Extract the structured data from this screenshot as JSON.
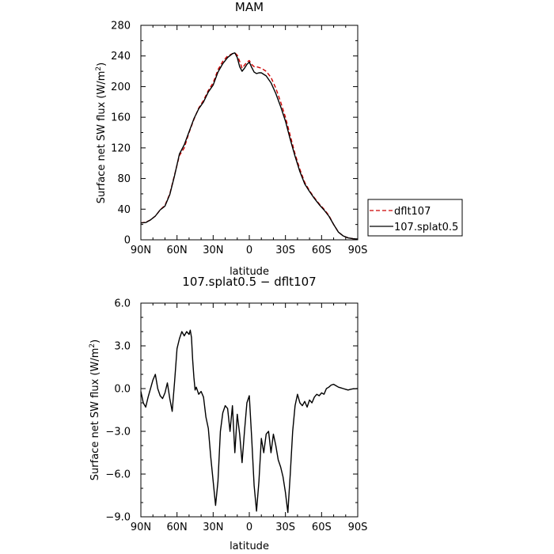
{
  "chart_data": [
    {
      "type": "line",
      "title": "MAM",
      "xlabel": "latitude",
      "ylabel": "Surface net SW flux (W/m²)",
      "x_tick_labels": [
        "90N",
        "60N",
        "30N",
        "0",
        "30S",
        "60S",
        "90S"
      ],
      "x_ticks": [
        90,
        60,
        30,
        0,
        -30,
        -60,
        -90
      ],
      "xlim": [
        90,
        -90
      ],
      "ylim": [
        0,
        280
      ],
      "y_ticks": [
        0,
        40,
        80,
        120,
        160,
        200,
        240,
        280
      ],
      "y_tick_labels": [
        "0",
        "40",
        "80",
        "120",
        "160",
        "200",
        "240",
        "280"
      ],
      "grid": false,
      "legend_position": "right",
      "series": [
        {
          "name": "dflt107",
          "color": "#cc0000",
          "dash": true,
          "x": [
            90,
            86,
            82,
            78,
            74,
            70,
            66,
            62,
            58,
            54,
            50,
            46,
            42,
            38,
            34,
            30,
            26,
            22,
            18,
            14,
            12,
            10,
            8,
            6,
            4,
            2,
            0,
            -2,
            -4,
            -6,
            -8,
            -10,
            -14,
            -18,
            -22,
            -26,
            -30,
            -34,
            -38,
            -42,
            -46,
            -50,
            -54,
            -58,
            -62,
            -66,
            -70,
            -74,
            -78,
            -82,
            -86,
            -90
          ],
          "y": [
            22,
            23,
            26,
            31,
            39,
            45,
            60,
            85,
            110,
            120,
            140,
            157,
            172,
            182,
            195,
            205,
            222,
            233,
            240,
            243,
            244,
            241,
            233,
            224,
            228,
            232,
            234,
            229,
            226,
            226,
            225,
            224,
            220,
            212,
            198,
            180,
            160,
            136,
            112,
            92,
            75,
            64,
            55,
            47,
            40,
            32,
            20,
            10,
            5,
            2.5,
            1.5,
            1
          ]
        },
        {
          "name": "107.splat0.5",
          "color": "#000000",
          "dash": false,
          "x": [
            90,
            86,
            82,
            78,
            74,
            70,
            66,
            62,
            58,
            54,
            50,
            46,
            42,
            38,
            34,
            30,
            26,
            22,
            18,
            14,
            12,
            10,
            8,
            6,
            4,
            2,
            0,
            -2,
            -4,
            -6,
            -8,
            -10,
            -14,
            -18,
            -22,
            -26,
            -30,
            -34,
            -38,
            -42,
            -46,
            -50,
            -54,
            -58,
            -62,
            -66,
            -70,
            -74,
            -78,
            -82,
            -86,
            -90
          ],
          "y": [
            22,
            22.5,
            26,
            31,
            39,
            44,
            59,
            84,
            112,
            124,
            141,
            158,
            171,
            180,
            193,
            202,
            219,
            230,
            238,
            243,
            244,
            238,
            226,
            220,
            224,
            229,
            232,
            225,
            219,
            217,
            218,
            218,
            214,
            205,
            191,
            174,
            155,
            131,
            109,
            89,
            73,
            63,
            54,
            46,
            39,
            31,
            20,
            10,
            5,
            2.5,
            1.5,
            1
          ]
        }
      ]
    },
    {
      "type": "line",
      "title": "107.splat0.5 − dflt107",
      "xlabel": "latitude",
      "ylabel": "Surface net SW flux (W/m²)",
      "x_tick_labels": [
        "90N",
        "60N",
        "30N",
        "0",
        "30S",
        "60S",
        "90S"
      ],
      "x_ticks": [
        90,
        60,
        30,
        0,
        -30,
        -60,
        -90
      ],
      "xlim": [
        90,
        -90
      ],
      "ylim": [
        -9,
        6
      ],
      "y_ticks": [
        6,
        3,
        0,
        -3,
        -6,
        -9
      ],
      "y_tick_labels": [
        "6.0",
        "3.0",
        "0.0",
        "−3.0",
        "−6.0",
        "−9.0"
      ],
      "grid": false,
      "series": [
        {
          "name": "",
          "color": "#000000",
          "dash": false,
          "x": [
            90,
            88,
            86,
            84,
            82,
            80,
            78,
            76,
            74,
            72,
            70,
            68,
            66,
            64,
            62,
            60,
            58,
            56,
            54,
            52,
            50,
            49,
            48,
            47,
            46,
            45,
            44,
            42,
            40,
            38,
            36,
            34,
            32,
            30,
            28,
            26,
            24,
            22,
            20,
            18,
            16,
            14,
            12,
            10,
            8,
            6,
            4,
            2,
            0,
            -2,
            -4,
            -6,
            -8,
            -10,
            -12,
            -14,
            -16,
            -18,
            -20,
            -22,
            -24,
            -26,
            -28,
            -30,
            -32,
            -34,
            -36,
            -38,
            -40,
            -42,
            -44,
            -46,
            -48,
            -50,
            -52,
            -54,
            -56,
            -58,
            -60,
            -62,
            -64,
            -66,
            -68,
            -70,
            -72,
            -74,
            -76,
            -78,
            -80,
            -82,
            -84,
            -86,
            -88,
            -90
          ],
          "y": [
            -0.2,
            -1.0,
            -1.3,
            -0.6,
            0.0,
            0.6,
            1.0,
            0.0,
            -0.5,
            -0.7,
            -0.3,
            0.4,
            -0.7,
            -1.6,
            0.5,
            2.8,
            3.5,
            4.0,
            3.7,
            4.0,
            3.8,
            4.1,
            3.6,
            2.0,
            0.8,
            -0.1,
            0.1,
            -0.4,
            -0.2,
            -0.6,
            -2.0,
            -2.8,
            -4.8,
            -6.5,
            -8.2,
            -6.5,
            -3.0,
            -1.7,
            -1.2,
            -1.4,
            -3.0,
            -1.2,
            -4.5,
            -1.8,
            -3.2,
            -5.2,
            -3.0,
            -1.0,
            -0.5,
            -3.5,
            -6.8,
            -8.6,
            -6.5,
            -3.5,
            -4.5,
            -3.2,
            -3.0,
            -4.5,
            -3.2,
            -4.0,
            -5.0,
            -5.5,
            -6.2,
            -7.3,
            -8.7,
            -6.0,
            -3.0,
            -1.2,
            -0.4,
            -1.0,
            -1.2,
            -0.9,
            -1.3,
            -0.8,
            -1.0,
            -0.6,
            -0.4,
            -0.5,
            -0.3,
            -0.4,
            0.0,
            0.1,
            0.25,
            0.3,
            0.2,
            0.1,
            0.05,
            0.0,
            -0.05,
            -0.1,
            -0.05,
            -0.02,
            -0.01,
            0.0
          ]
        }
      ]
    }
  ]
}
